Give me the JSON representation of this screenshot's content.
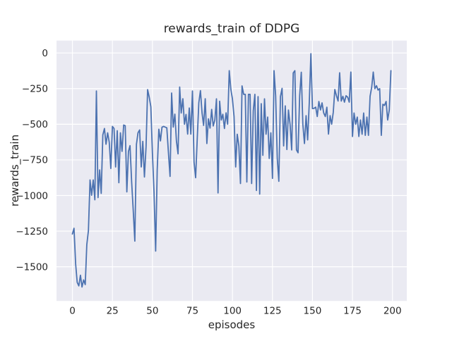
{
  "window": {
    "background": "#ffffff"
  },
  "chart_data": {
    "type": "line",
    "title": "rewards_train of DDPG",
    "xlabel": "episodes",
    "ylabel": "rewards_train",
    "x_ticks": [
      0,
      25,
      50,
      75,
      100,
      125,
      150,
      175,
      200
    ],
    "y_ticks": [
      0,
      -250,
      -500,
      -750,
      -1000,
      -1250,
      -1500
    ],
    "xlim": [
      -9.95,
      208.95
    ],
    "ylim": [
      -1740,
      87
    ],
    "grid": true,
    "legend": "none",
    "x_start": 0,
    "x_step": 1,
    "style": {
      "plot_bg": "#eaeaf2",
      "grid_color": "#ffffff",
      "line_color": "#4c72b0",
      "text_color": "#262626",
      "line_width": 1.8
    },
    "series": [
      {
        "name": "rewards_train",
        "values": [
          -1270,
          -1230,
          -1480,
          -1609,
          -1634,
          -1559,
          -1642,
          -1592,
          -1625,
          -1345,
          -1246,
          -891,
          -998,
          -891,
          -1030,
          -267,
          -1015,
          -820,
          -985,
          -575,
          -530,
          -640,
          -560,
          -627,
          -810,
          -515,
          -530,
          -800,
          -545,
          -910,
          -560,
          -690,
          -505,
          -510,
          -975,
          -690,
          -650,
          -905,
          -1100,
          -1320,
          -640,
          -560,
          -540,
          -800,
          -620,
          -870,
          -660,
          -257,
          -310,
          -378,
          -700,
          -980,
          -1390,
          -820,
          -535,
          -617,
          -520,
          -515,
          -520,
          -525,
          -700,
          -866,
          -281,
          -520,
          -429,
          -617,
          -708,
          -239,
          -421,
          -321,
          -500,
          -431,
          -569,
          -386,
          -569,
          -267,
          -767,
          -875,
          -600,
          -350,
          -264,
          -421,
          -508,
          -321,
          -635,
          -462,
          -527,
          -396,
          -512,
          -470,
          -322,
          -982,
          -338,
          -470,
          -430,
          -530,
          -420,
          -500,
          -124,
          -255,
          -322,
          -446,
          -800,
          -570,
          -652,
          -916,
          -231,
          -290,
          -290,
          -905,
          -290,
          -290,
          -916,
          -406,
          -290,
          -965,
          -306,
          -990,
          -356,
          -718,
          -322,
          -570,
          -450,
          -740,
          -560,
          -880,
          -124,
          -300,
          -740,
          -900,
          -305,
          -248,
          -652,
          -371,
          -677,
          -400,
          -500,
          -680,
          -140,
          -124,
          -680,
          -700,
          -300,
          -135,
          -500,
          -635,
          -440,
          -610,
          -350,
          -5,
          -390,
          -388,
          -380,
          -446,
          -340,
          -400,
          -350,
          -420,
          -446,
          -380,
          -569,
          -440,
          -500,
          -415,
          -256,
          -300,
          -337,
          -139,
          -337,
          -304,
          -345,
          -300,
          -310,
          -345,
          -134,
          -586,
          -421,
          -500,
          -450,
          -586,
          -470,
          -570,
          -421,
          -578,
          -450,
          -578,
          -304,
          -240,
          -134,
          -250,
          -230,
          -260,
          -250,
          -578,
          -360,
          -368,
          -340,
          -470,
          -400,
          -124
        ]
      }
    ]
  }
}
